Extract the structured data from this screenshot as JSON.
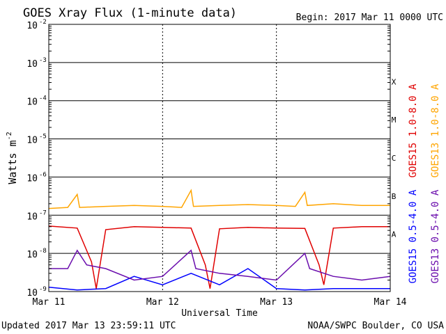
{
  "header": {
    "title": "GOES Xray Flux (1-minute data)",
    "begin": "Begin:  2017 Mar 11 0000 UTC"
  },
  "footer": {
    "updated": "Updated 2017 Mar 13 23:59:11 UTC",
    "credit": "NOAA/SWPC Boulder, CO USA"
  },
  "colors": {
    "goes15_long": "#e00000",
    "goes13_long": "#ffa500",
    "goes15_short": "#0000ff",
    "goes13_short": "#6a0dad"
  },
  "chart_data": {
    "type": "line",
    "title": "GOES Xray Flux (1-minute data)",
    "xlabel": "Universal Time",
    "ylabel": "Watts m",
    "ylabel_sup": "-2",
    "y_scale": "log",
    "ylim": [
      1e-09,
      0.01
    ],
    "xlim": [
      "2017-03-11 00:00",
      "2017-03-14 00:00"
    ],
    "x_tick_labels": [
      "Mar 11",
      "Mar 12",
      "Mar 13",
      "Mar 14"
    ],
    "y_ticks": [
      {
        "base": "10",
        "exp": "-2"
      },
      {
        "base": "10",
        "exp": "-3"
      },
      {
        "base": "10",
        "exp": "-4"
      },
      {
        "base": "10",
        "exp": "-5"
      },
      {
        "base": "10",
        "exp": "-6"
      },
      {
        "base": "10",
        "exp": "-7"
      },
      {
        "base": "10",
        "exp": "-8"
      },
      {
        "base": "10",
        "exp": "-9"
      }
    ],
    "flare_classes": [
      {
        "label": "X",
        "flux": 0.0001
      },
      {
        "label": "M",
        "flux": 1e-05
      },
      {
        "label": "C",
        "flux": 1e-06
      },
      {
        "label": "B",
        "flux": 1e-07
      },
      {
        "label": "A",
        "flux": 1e-08
      }
    ],
    "grid": true,
    "legend": "right",
    "series": [
      {
        "name": "GOES15 1.0-8.0 A",
        "color": "#e00000",
        "x": [
          "2017-03-11 00:00",
          "2017-03-11 06:00",
          "2017-03-11 09:00",
          "2017-03-11 10:00",
          "2017-03-11 12:00",
          "2017-03-11 18:00",
          "2017-03-12 00:00",
          "2017-03-12 06:00",
          "2017-03-12 09:00",
          "2017-03-12 10:00",
          "2017-03-12 12:00",
          "2017-03-12 18:00",
          "2017-03-13 00:00",
          "2017-03-13 06:00",
          "2017-03-13 09:00",
          "2017-03-13 10:00",
          "2017-03-13 12:00",
          "2017-03-13 18:00",
          "2017-03-14 00:00"
        ],
        "y": [
          5.2e-08,
          4.6e-08,
          6e-09,
          1.2e-09,
          4.2e-08,
          5e-08,
          4.8e-08,
          4.6e-08,
          5e-09,
          1.2e-09,
          4.4e-08,
          4.8e-08,
          4.6e-08,
          4.5e-08,
          5e-09,
          1.5e-09,
          4.6e-08,
          5e-08,
          5e-08
        ]
      },
      {
        "name": "GOES13 1.0-8.0 A",
        "color": "#ffa500",
        "x": [
          "2017-03-11 00:00",
          "2017-03-11 04:00",
          "2017-03-11 06:00",
          "2017-03-11 06:30",
          "2017-03-11 12:00",
          "2017-03-11 18:00",
          "2017-03-12 00:00",
          "2017-03-12 04:00",
          "2017-03-12 06:00",
          "2017-03-12 06:30",
          "2017-03-12 12:00",
          "2017-03-12 18:00",
          "2017-03-13 00:00",
          "2017-03-13 04:00",
          "2017-03-13 06:00",
          "2017-03-13 06:30",
          "2017-03-13 12:00",
          "2017-03-13 18:00",
          "2017-03-14 00:00"
        ],
        "y": [
          1.5e-07,
          1.6e-07,
          3.5e-07,
          1.6e-07,
          1.7e-07,
          1.8e-07,
          1.7e-07,
          1.6e-07,
          4.5e-07,
          1.7e-07,
          1.8e-07,
          1.9e-07,
          1.8e-07,
          1.7e-07,
          4e-07,
          1.8e-07,
          2e-07,
          1.8e-07,
          1.8e-07
        ]
      },
      {
        "name": "GOES15 0.5-4.0 A",
        "color": "#0000ff",
        "x": [
          "2017-03-11 00:00",
          "2017-03-11 06:00",
          "2017-03-11 12:00",
          "2017-03-11 18:00",
          "2017-03-12 00:00",
          "2017-03-12 06:00",
          "2017-03-12 12:00",
          "2017-03-12 18:00",
          "2017-03-13 00:00",
          "2017-03-13 06:00",
          "2017-03-13 12:00",
          "2017-03-13 18:00",
          "2017-03-14 00:00"
        ],
        "y": [
          1.3e-09,
          1.1e-09,
          1.2e-09,
          2.5e-09,
          1.5e-09,
          3e-09,
          1.5e-09,
          4e-09,
          1.2e-09,
          1.1e-09,
          1.2e-09,
          1.2e-09,
          1.2e-09
        ]
      },
      {
        "name": "GOES13 0.5-4.0 A",
        "color": "#6a0dad",
        "x": [
          "2017-03-11 00:00",
          "2017-03-11 04:00",
          "2017-03-11 06:00",
          "2017-03-11 08:00",
          "2017-03-11 12:00",
          "2017-03-11 18:00",
          "2017-03-12 00:00",
          "2017-03-12 06:00",
          "2017-03-12 07:00",
          "2017-03-12 12:00",
          "2017-03-12 18:00",
          "2017-03-13 00:00",
          "2017-03-13 06:00",
          "2017-03-13 07:00",
          "2017-03-13 12:00",
          "2017-03-13 18:00",
          "2017-03-14 00:00"
        ],
        "y": [
          4e-09,
          4e-09,
          1.2e-08,
          5e-09,
          4e-09,
          2e-09,
          2.5e-09,
          1.2e-08,
          4e-09,
          3e-09,
          2.5e-09,
          2e-09,
          1e-08,
          4e-09,
          2.5e-09,
          2e-09,
          2.5e-09
        ]
      }
    ]
  }
}
